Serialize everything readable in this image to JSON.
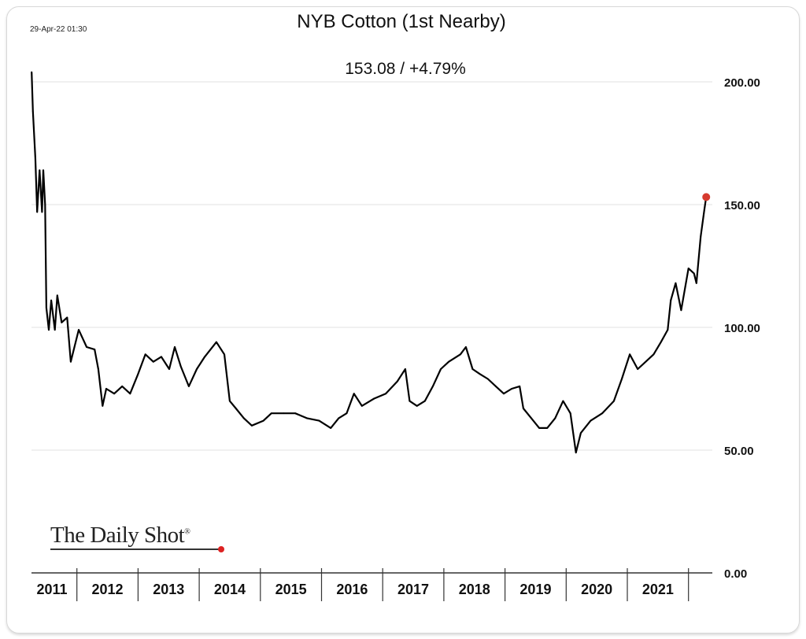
{
  "chart_data": {
    "type": "line",
    "title": "NYB Cotton (1st Nearby)",
    "subtitle": "153.08  /  +4.79%",
    "timestamp": "29-Apr-22 01:30",
    "source": "The Daily Shot",
    "xlabel": "",
    "ylabel": "",
    "ylim": [
      0,
      200
    ],
    "xlim": [
      2011,
      2022.2
    ],
    "y_ticks": [
      {
        "value": 0,
        "label": "0.00"
      },
      {
        "value": 50,
        "label": "50.00"
      },
      {
        "value": 100,
        "label": "100.00"
      },
      {
        "value": 150,
        "label": "150.00"
      },
      {
        "value": 200,
        "label": "200.00"
      }
    ],
    "x_ticks": [
      "2011",
      "2012",
      "2013",
      "2014",
      "2015",
      "2016",
      "2017",
      "2018",
      "2019",
      "2020",
      "2021"
    ],
    "grid": true,
    "last_value": 153.08,
    "last_marker_color": "#d63a2f",
    "line_color": "#000000",
    "series": [
      {
        "name": "NYB Cotton (1st Nearby)",
        "x": [
          2011.26,
          2011.28,
          2011.32,
          2011.35,
          2011.39,
          2011.43,
          2011.45,
          2011.48,
          2011.5,
          2011.54,
          2011.58,
          2011.64,
          2011.68,
          2011.75,
          2011.84,
          2011.9,
          2012.03,
          2012.16,
          2012.29,
          2012.35,
          2012.42,
          2012.48,
          2012.61,
          2012.74,
          2012.87,
          2013.0,
          2013.12,
          2013.25,
          2013.38,
          2013.51,
          2013.6,
          2013.7,
          2013.83,
          2013.96,
          2014.09,
          2014.28,
          2014.41,
          2014.5,
          2014.6,
          2014.73,
          2014.86,
          2015.05,
          2015.18,
          2015.38,
          2015.57,
          2015.76,
          2015.96,
          2016.15,
          2016.28,
          2016.41,
          2016.53,
          2016.66,
          2016.86,
          2017.05,
          2017.24,
          2017.37,
          2017.44,
          2017.56,
          2017.69,
          2017.82,
          2017.95,
          2018.08,
          2018.27,
          2018.36,
          2018.47,
          2018.59,
          2018.72,
          2018.85,
          2018.98,
          2019.11,
          2019.24,
          2019.3,
          2019.43,
          2019.56,
          2019.69,
          2019.82,
          2019.95,
          2020.07,
          2020.16,
          2020.24,
          2020.4,
          2020.59,
          2020.78,
          2020.91,
          2021.04,
          2021.17,
          2021.3,
          2021.43,
          2021.55,
          2021.66,
          2021.71,
          2021.79,
          2021.88,
          2022.0,
          2022.09,
          2022.13,
          2022.2,
          2022.26,
          2022.29
        ],
        "values": [
          204,
          188,
          169,
          147,
          164,
          147,
          164,
          150,
          108,
          99,
          111,
          99,
          113,
          102,
          104,
          86,
          99,
          92,
          91,
          83,
          68,
          75,
          73,
          76,
          73,
          81,
          89,
          86,
          88,
          83,
          92,
          84,
          76,
          83,
          88,
          94,
          89,
          70,
          67,
          63,
          60,
          62,
          65,
          65,
          65,
          63,
          62,
          59,
          63,
          65,
          73,
          68,
          71,
          73,
          78,
          83,
          70,
          68,
          70,
          76,
          83,
          86,
          89,
          92,
          83,
          81,
          79,
          76,
          73,
          75,
          76,
          67,
          63,
          59,
          59,
          63,
          70,
          65,
          49,
          57,
          62,
          65,
          70,
          79,
          89,
          83,
          86,
          89,
          94,
          99,
          111,
          118,
          107,
          124,
          122,
          118,
          137,
          148,
          153.08
        ]
      }
    ]
  }
}
